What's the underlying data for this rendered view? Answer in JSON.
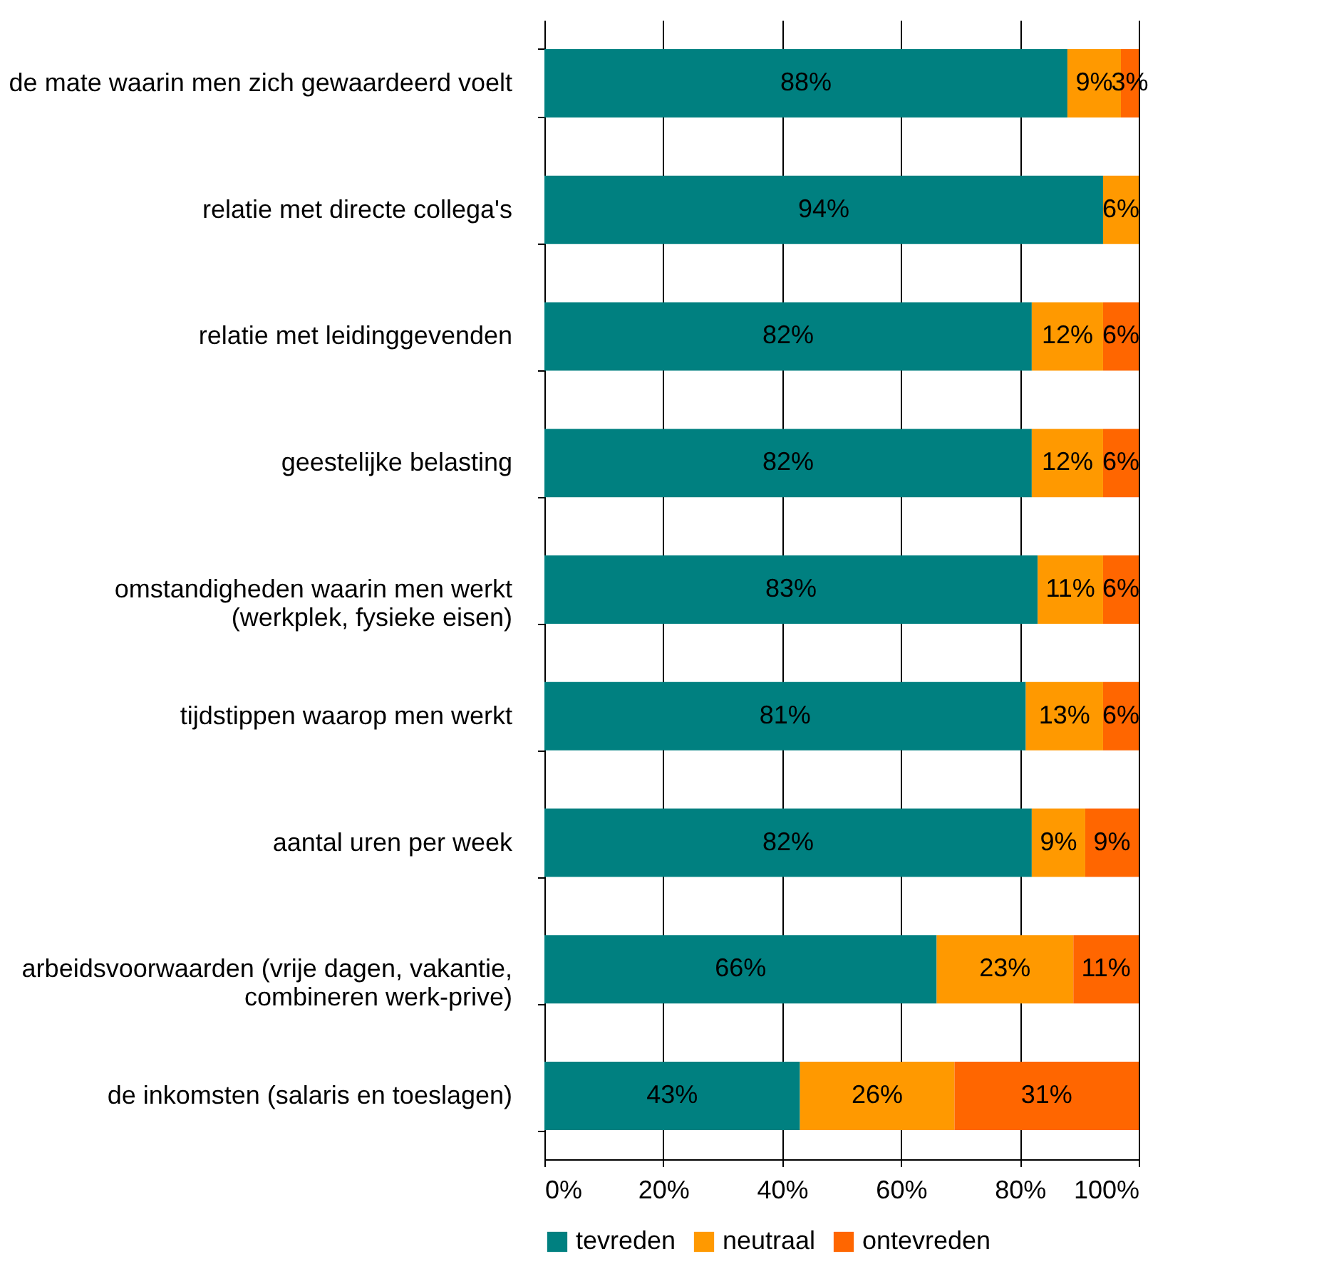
{
  "chart_data": {
    "type": "bar",
    "orientation": "horizontal",
    "stacked": true,
    "categories": [
      "de mate waarin men zich gewaardeerd voelt",
      "relatie met directe collega's",
      "relatie met leidinggevenden",
      "geestelijke belasting",
      "omstandigheden waarin men werkt\n(werkplek, fysieke eisen)",
      "tijdstippen waarop  men werkt",
      "aantal uren per week",
      "arbeidsvoorwaarden (vrije dagen, vakantie,\ncombineren werk-prive)",
      "de inkomsten (salaris en toeslagen)"
    ],
    "series": [
      {
        "name": "tevreden",
        "color": "#008080",
        "values": [
          88,
          94,
          82,
          82,
          83,
          81,
          82,
          66,
          43
        ],
        "value_labels": [
          "88%",
          "94%",
          "82%",
          "82%",
          "83%",
          "81%",
          "82%",
          "66%",
          "43%"
        ]
      },
      {
        "name": "neutraal",
        "color": "#ff9900",
        "values": [
          9,
          6,
          12,
          12,
          11,
          13,
          9,
          23,
          26
        ],
        "value_labels": [
          "9%",
          "6%",
          "12%",
          "12%",
          "11%",
          "13%",
          "9%",
          "23%",
          "26%"
        ]
      },
      {
        "name": "ontevreden",
        "color": "#ff6600",
        "values": [
          3,
          null,
          6,
          6,
          6,
          6,
          9,
          11,
          31
        ],
        "value_labels": [
          "3%",
          null,
          "6%",
          "6%",
          "6%",
          "6%",
          "9%",
          "11%",
          "31%"
        ]
      }
    ],
    "xlim": [
      0,
      100
    ],
    "xticks": [
      {
        "value": 0,
        "label": "0%"
      },
      {
        "value": 20,
        "label": "20%"
      },
      {
        "value": 40,
        "label": "40%"
      },
      {
        "value": 60,
        "label": "60%"
      },
      {
        "value": 80,
        "label": "80%"
      },
      {
        "value": 100,
        "label": "100%"
      }
    ],
    "grid": "x",
    "legend": "bottom"
  }
}
